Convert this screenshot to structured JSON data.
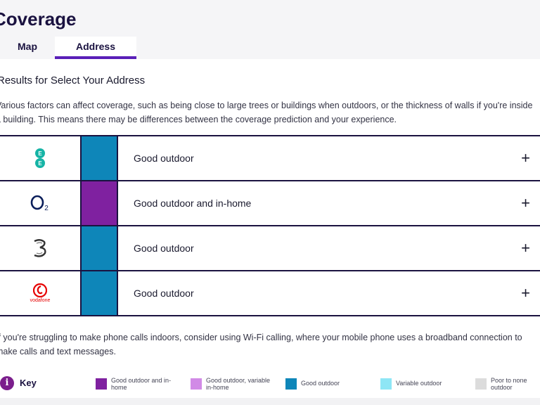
{
  "header": {
    "title": "Coverage"
  },
  "tabs": [
    {
      "label": "Map",
      "active": false
    },
    {
      "label": "Address",
      "active": true
    }
  ],
  "results": {
    "heading": "Results for Select Your Address",
    "intro": "Various factors can affect coverage, such as being close to large trees or buildings when outdoors, or the thickness of walls if you're inside a building. This means there may be differences between the coverage prediction and your experience."
  },
  "networks": [
    {
      "name": "EE",
      "logo": "ee-logo",
      "coverage": "Good outdoor",
      "color": "#0e86b9"
    },
    {
      "name": "O2",
      "logo": "o2-logo",
      "coverage": "Good outdoor and in-home",
      "color": "#7f21a0"
    },
    {
      "name": "Three",
      "logo": "three-logo",
      "coverage": "Good outdoor",
      "color": "#0e86b9"
    },
    {
      "name": "vodafone",
      "logo": "vodafone-logo",
      "coverage": "Good outdoor",
      "color": "#0e86b9"
    }
  ],
  "expand_symbol": "+",
  "wifi_note": "If you're struggling to make phone calls indoors, consider using Wi-Fi calling, where your mobile phone uses a broadband connection to make calls and text messages.",
  "key": {
    "icon_text": "i",
    "title": "Key",
    "items": [
      {
        "label": "Good outdoor and in-home",
        "color": "#7f21a0"
      },
      {
        "label": "Good outdoor, variable in-home",
        "color": "#d18ae6"
      },
      {
        "label": "Good outdoor",
        "color": "#0e86b9"
      },
      {
        "label": "Variable outdoor",
        "color": "#8ee6f5"
      },
      {
        "label": "Poor to none outdoor",
        "color": "#dcdcdc"
      }
    ]
  }
}
